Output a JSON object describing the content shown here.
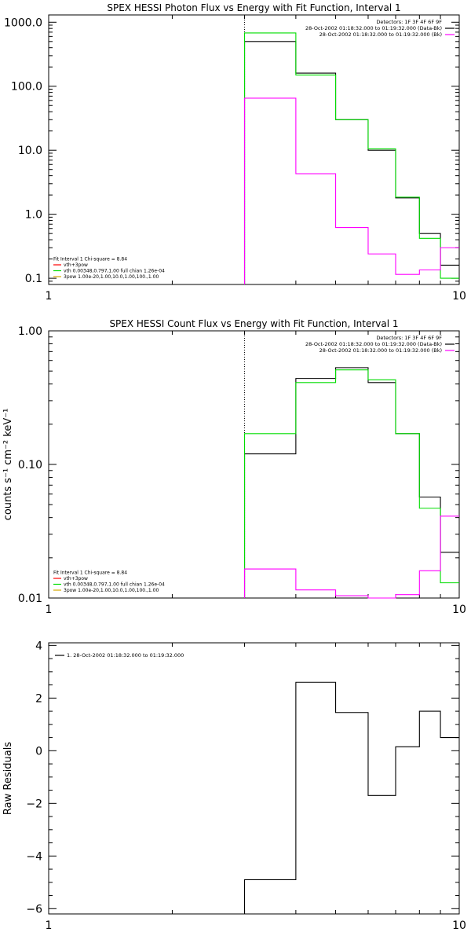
{
  "chart_data": [
    {
      "type": "line",
      "title": "SPEX HESSI Photon Flux vs Energy with Fit Function, Interval 1",
      "xscale": "log",
      "yscale": "log",
      "xlim": [
        1,
        10
      ],
      "ylim": [
        0.08,
        1300
      ],
      "xticks": [
        {
          "v": 1,
          "label": "1"
        },
        {
          "v": 10,
          "label": "10"
        }
      ],
      "yticks": [
        {
          "v": 0.1,
          "label": "0.1"
        },
        {
          "v": 1,
          "label": "1.0"
        },
        {
          "v": 10,
          "label": "10.0"
        },
        {
          "v": 100,
          "label": "100.0"
        },
        {
          "v": 1000,
          "label": "1000.0"
        }
      ],
      "vline": 3,
      "edges": [
        3,
        4,
        5,
        6,
        7,
        8,
        9,
        10
      ],
      "series": [
        {
          "name": "black",
          "color": "#000000",
          "values": [
            500,
            160,
            30,
            10,
            1.8,
            0.5,
            0.16
          ]
        },
        {
          "name": "green",
          "color": "#00dd00",
          "values": [
            680,
            150,
            30,
            10.5,
            1.85,
            0.42,
            0.1
          ]
        },
        {
          "name": "magenta",
          "color": "#ff00ff",
          "values": [
            65,
            4.3,
            0.62,
            0.24,
            0.115,
            0.135,
            0.3
          ]
        }
      ],
      "legend_tr": [
        {
          "text": "Detectors: 1F 3F 4F 6F 9F",
          "color": ""
        },
        {
          "text": "28-Oct-2002 01:18:32.000 to 01:19:32.000 (Data-Bk)",
          "color": "#000000"
        },
        {
          "text": "28-Oct-2002 01:18:32.000 to 01:19:32.000 (Bk)",
          "color": "#ff00ff"
        }
      ],
      "legend_bl": [
        {
          "text": "Fit Interval 1   Chi-square = 8.84",
          "color": ""
        },
        {
          "text": "vth+3pow",
          "color": "#ff0000"
        },
        {
          "text": "vth 0.00348,0.797,1.00   full chian 1.26e-04",
          "color": "#00dd00"
        },
        {
          "text": "3pow 1.00e-20,1.00,10.0,1.00,100.,1.00",
          "color": "#d4a800"
        }
      ]
    },
    {
      "type": "line",
      "title": "SPEX HESSI Count Flux vs Energy with Fit Function, Interval 1",
      "ylabel": "counts s⁻¹ cm⁻² keV⁻¹",
      "xscale": "log",
      "yscale": "log",
      "xlim": [
        1,
        10
      ],
      "ylim": [
        0.01,
        1.0
      ],
      "xticks": [
        {
          "v": 1,
          "label": "1"
        },
        {
          "v": 10,
          "label": "10"
        }
      ],
      "yticks": [
        {
          "v": 0.01,
          "label": "0.01"
        },
        {
          "v": 0.1,
          "label": "0.10"
        },
        {
          "v": 1,
          "label": "1.00"
        }
      ],
      "vline": 3,
      "edges": [
        3,
        4,
        5,
        6,
        7,
        8,
        9,
        10
      ],
      "series": [
        {
          "name": "black",
          "color": "#000000",
          "values": [
            0.12,
            0.44,
            0.53,
            0.41,
            0.17,
            0.057,
            0.022
          ]
        },
        {
          "name": "green",
          "color": "#00dd00",
          "values": [
            0.17,
            0.41,
            0.51,
            0.43,
            0.17,
            0.047,
            0.013
          ]
        },
        {
          "name": "magenta",
          "color": "#ff00ff",
          "values": [
            0.0165,
            0.0115,
            0.0104,
            0.0098,
            0.0106,
            0.016,
            0.041
          ]
        }
      ],
      "legend_tr": [
        {
          "text": "Detectors: 1F 3F 4F 6F 9F",
          "color": ""
        },
        {
          "text": "28-Oct-2002 01:18:32.000 to 01:19:32.000 (Data-Bk)",
          "color": "#000000"
        },
        {
          "text": "28-Oct-2002 01:18:32.000 to 01:19:32.000 (Bk)",
          "color": "#ff00ff"
        }
      ],
      "legend_bl": [
        {
          "text": "Fit Interval 1   Chi-square = 8.84",
          "color": ""
        },
        {
          "text": "vth+3pow",
          "color": "#ff0000"
        },
        {
          "text": "vth 0.00348,0.797,1.00   full chian 1.26e-04",
          "color": "#00dd00"
        },
        {
          "text": "3pow 1.00e-20,1.00,10.0,1.00,100.,1.00",
          "color": "#d4a800"
        }
      ]
    },
    {
      "type": "line",
      "title": "",
      "ylabel": "Raw Residuals",
      "xscale": "log",
      "yscale": "linear",
      "xlim": [
        1,
        10
      ],
      "ylim": [
        -6.2,
        4.1
      ],
      "xticks": [
        {
          "v": 1,
          "label": "1"
        },
        {
          "v": 10,
          "label": "10"
        }
      ],
      "yticks": [
        {
          "v": -6,
          "label": "−6"
        },
        {
          "v": -4,
          "label": "−4"
        },
        {
          "v": -2,
          "label": "−2"
        },
        {
          "v": 0,
          "label": "0"
        },
        {
          "v": 2,
          "label": "2"
        },
        {
          "v": 4,
          "label": "4"
        }
      ],
      "edges": [
        3,
        4,
        5,
        6,
        7,
        8,
        9,
        10
      ],
      "series": [
        {
          "name": "black",
          "color": "#000000",
          "values": [
            -4.9,
            2.6,
            1.45,
            -1.7,
            0.15,
            1.5,
            0.5
          ]
        }
      ],
      "legend_tl": [
        {
          "text": "1. 28-Oct-2002 01:18:32.000 to 01:19:32.000",
          "color": "#000000"
        }
      ]
    }
  ]
}
